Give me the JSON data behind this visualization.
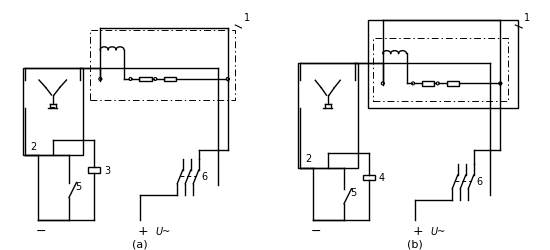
{
  "title_a": "(a)",
  "title_b": "(b)",
  "label_1": "1",
  "label_2": "2",
  "label_3": "3",
  "label_4": "4",
  "label_5": "5",
  "label_6": "6",
  "label_minus": "−",
  "label_plus": "+",
  "label_U": "U~",
  "line_color": "black",
  "bg_color": "white",
  "lw": 1.0,
  "dash_lw": 0.7
}
